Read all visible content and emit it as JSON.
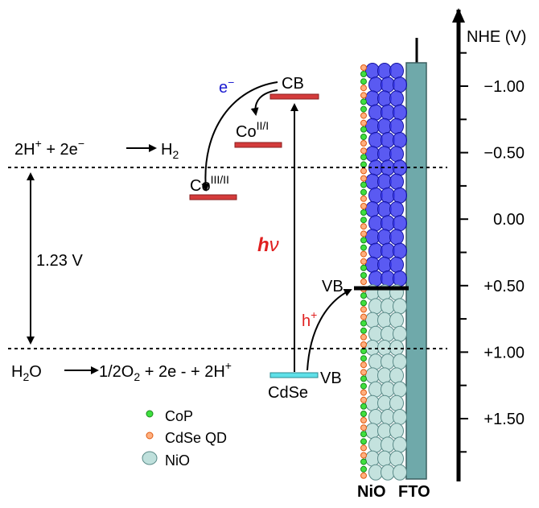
{
  "axis": {
    "title": "NHE (V)",
    "ticks": [
      "−1.00",
      "−0.50",
      "0.00",
      "+0.50",
      "+1.00",
      "+1.50"
    ]
  },
  "levels": {
    "cb": "CB",
    "electron": "e",
    "electron_sign": "−",
    "co_21": {
      "base": "Co",
      "sup": "II/I"
    },
    "co_32": {
      "base": "Co",
      "sup": "III/II"
    },
    "hv": {
      "h": "h",
      "nu": "ν"
    },
    "vb_nio": "VB",
    "hole": "h",
    "hole_sign": "+",
    "cdse": "CdSe",
    "vb_cdse": "VB"
  },
  "reactions": {
    "h2": {
      "left": [
        "2H",
        "+",
        " + 2e",
        "−"
      ],
      "right": [
        "H",
        "2"
      ]
    },
    "o2": {
      "left": [
        "H",
        "2",
        "O"
      ],
      "right": [
        "1/2O",
        "2",
        " + 2e",
        " - ",
        "+ 2H",
        "+"
      ]
    }
  },
  "gap": "1.23 V",
  "legend": [
    "CoP",
    "CdSe QD",
    "NiO"
  ],
  "electrode": [
    "NiO",
    "FTO"
  ]
}
